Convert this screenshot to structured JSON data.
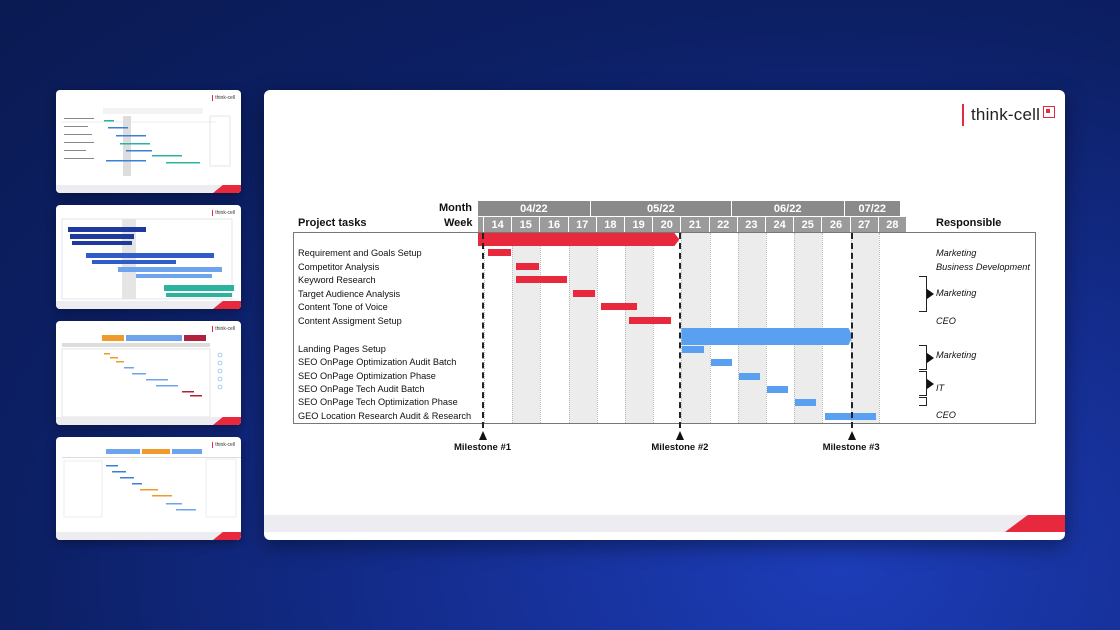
{
  "slide": {
    "logo_text": "think-cell",
    "header": {
      "month_label": "Month",
      "week_label": "Week",
      "tasks_label": "Project tasks",
      "responsible_label": "Responsible"
    },
    "months": [
      "04/22",
      "05/22",
      "06/22",
      "07/22"
    ],
    "weeks": [
      "14",
      "15",
      "16",
      "17",
      "18",
      "19",
      "20",
      "21",
      "22",
      "23",
      "24",
      "25",
      "26",
      "27",
      "28"
    ],
    "tasks": [
      "Requirement and Goals Setup",
      "Competitor Analysis",
      "Keyword Research",
      "Target Audience Analysis",
      "Content Tone of Voice",
      "Content Assigment Setup",
      "Landing Pages Setup",
      "SEO OnPage Optimization Audit Batch",
      "SEO OnPage Optimization Phase",
      "SEO OnPage Tech Audit Batch",
      "SEO OnPage Tech Optimization Phase",
      "GEO Location Research Audit & Research"
    ],
    "responsible": [
      "Marketing",
      "Business Development",
      "Marketing",
      "CEO",
      "Marketing",
      "IT",
      "CEO"
    ],
    "milestones": [
      "Milestone #1",
      "Milestone #2",
      "Milestone #3"
    ],
    "colors": {
      "phase1": "#e8293d",
      "phase2": "#5aa0f0",
      "accent": "#e8293d",
      "background": "#0c1f63"
    }
  },
  "thumbnails": [
    "gantt-thumbnail-1",
    "gantt-thumbnail-2",
    "gantt-thumbnail-3",
    "gantt-thumbnail-4"
  ]
}
